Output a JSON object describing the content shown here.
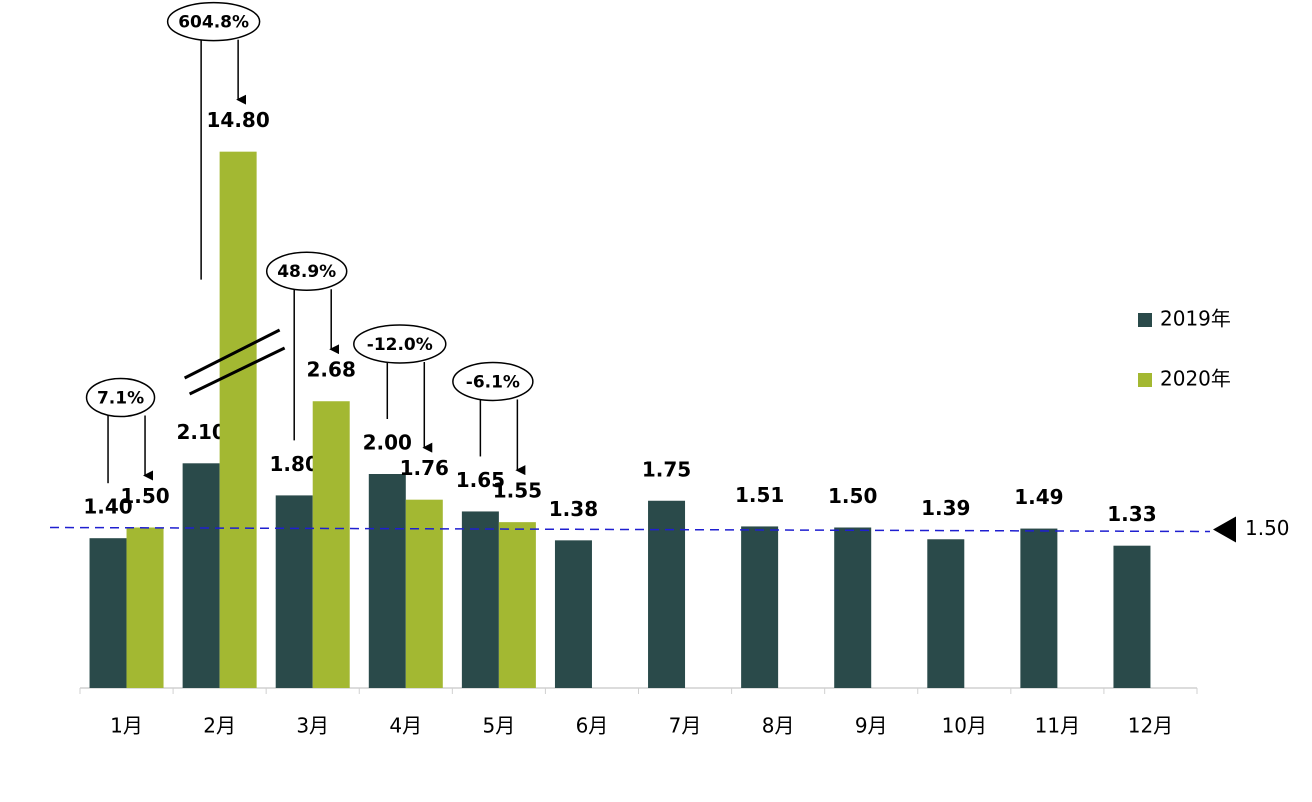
{
  "chart_data": {
    "type": "bar",
    "categories": [
      "1月",
      "2月",
      "3月",
      "4月",
      "5月",
      "6月",
      "7月",
      "8月",
      "9月",
      "10月",
      "11月",
      "12月"
    ],
    "series": [
      {
        "name": "2019年",
        "color": "#2a4a4a",
        "values": [
          1.4,
          2.1,
          1.8,
          2.0,
          1.65,
          1.38,
          1.75,
          1.51,
          1.5,
          1.39,
          1.49,
          1.33
        ],
        "value_labels": [
          "1.40",
          "2.10",
          "1.80",
          "2.00",
          "1.65",
          "1.38",
          "1.75",
          "1.51",
          "1.50",
          "1.39",
          "1.49",
          "1.33"
        ]
      },
      {
        "name": "2020年",
        "color": "#a3b832",
        "values": [
          1.5,
          14.8,
          2.68,
          1.76,
          1.55,
          null,
          null,
          null,
          null,
          null,
          null,
          null
        ],
        "value_labels": [
          "1.50",
          "14.80",
          "2.68",
          "1.76",
          "1.55",
          null,
          null,
          null,
          null,
          null,
          null,
          null
        ]
      }
    ],
    "annotations": [
      "7.1%",
      "604.8%",
      "48.9%",
      "-12.0%",
      "-6.1%"
    ],
    "reference_line": {
      "value": 1.5,
      "label": "1.50",
      "color": "#1f1fd0"
    },
    "legend": "right"
  }
}
